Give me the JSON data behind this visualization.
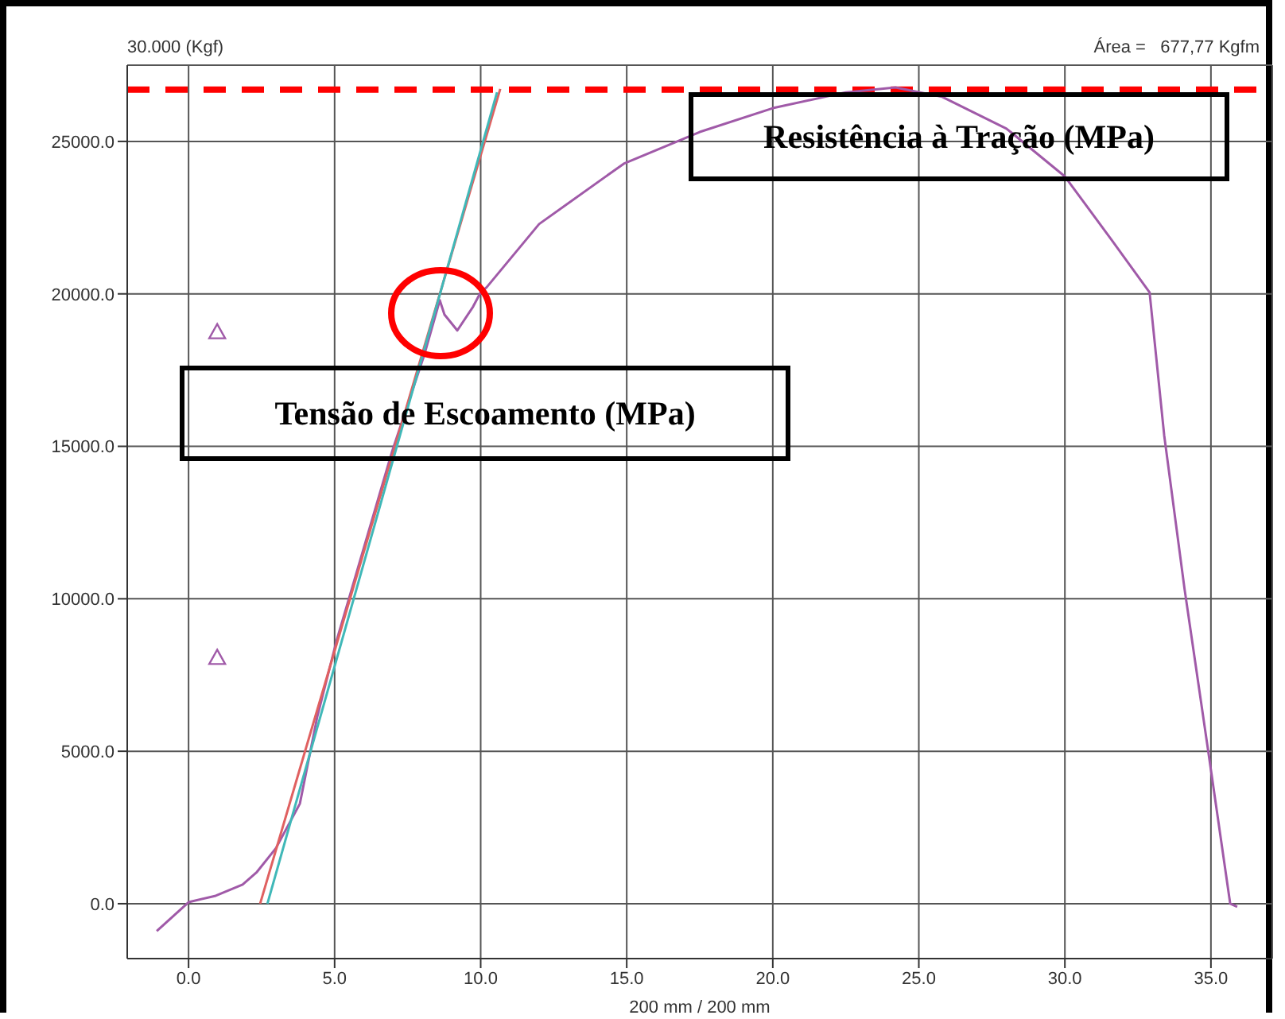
{
  "chart_data": {
    "type": "line",
    "xlabel": "200 mm / 200 mm",
    "ylabel": "30.000 (Kgf)",
    "annotations": [
      "Área =   677,77 Kgfm",
      "Resistência à Tração (MPa)",
      "Tensão de Escoamento (MPa)"
    ],
    "xlim": [
      -2.1,
      37.1
    ],
    "ylim": [
      -1800,
      27500
    ],
    "xticks": [
      {
        "value": 0,
        "label": "0.0"
      },
      {
        "value": 5,
        "label": "5.0"
      },
      {
        "value": 10,
        "label": "10.0"
      },
      {
        "value": 15,
        "label": "15.0"
      },
      {
        "value": 20,
        "label": "20.0"
      },
      {
        "value": 25,
        "label": "25.0"
      },
      {
        "value": 30,
        "label": "30.0"
      },
      {
        "value": 35,
        "label": "35.0"
      }
    ],
    "yticks": [
      {
        "value": 0,
        "label": "0.0"
      },
      {
        "value": 5000,
        "label": "5000.0"
      },
      {
        "value": 10000,
        "label": "10000.0"
      },
      {
        "value": 15000,
        "label": "15000.0"
      },
      {
        "value": 20000,
        "label": "20000.0"
      },
      {
        "value": 25000,
        "label": "25000.0"
      }
    ],
    "grid": true,
    "marker": "none",
    "line_style": "solid",
    "ref_lines": [
      {
        "axis": "y",
        "value": 26700,
        "color": "#ff0000",
        "line_style": "dashed"
      }
    ],
    "series": [
      {
        "color": "#a05aa8",
        "x": [
          -1.09,
          0,
          0.93,
          1.85,
          2.34,
          2.99,
          3.81,
          4.41,
          5.06,
          6.97,
          8.06,
          8.6,
          8.76,
          9.2,
          9.74,
          10.0,
          10.2,
          12.0,
          14.9,
          17.5,
          20.0,
          22.5,
          24.2,
          25.8,
          28.0,
          30.0,
          31.6,
          32.9,
          33.4,
          34.1,
          34.9,
          35.66,
          35.9
        ],
        "values": [
          -900,
          50,
          260,
          625,
          1040,
          1820,
          3280,
          6150,
          8600,
          14840,
          17970,
          19790,
          19320,
          18800,
          19580,
          20050,
          20210,
          22290,
          24270,
          25310,
          26090,
          26610,
          26770,
          26460,
          25420,
          23850,
          21770,
          20050,
          15360,
          10300,
          5050,
          0,
          -100
        ]
      },
      {
        "color": "#e06060",
        "x": [
          2.45,
          10.67
        ],
        "values": [
          0,
          26720
        ]
      },
      {
        "color": "#40b8b8",
        "x": [
          2.7,
          10.56
        ],
        "values": [
          0,
          26610
        ]
      },
      {
        "type": "scatter",
        "marker": "triangle",
        "color": "#a05aa8",
        "x": [
          0.98,
          0.98
        ],
        "values": [
          18750,
          8070
        ]
      }
    ]
  }
}
